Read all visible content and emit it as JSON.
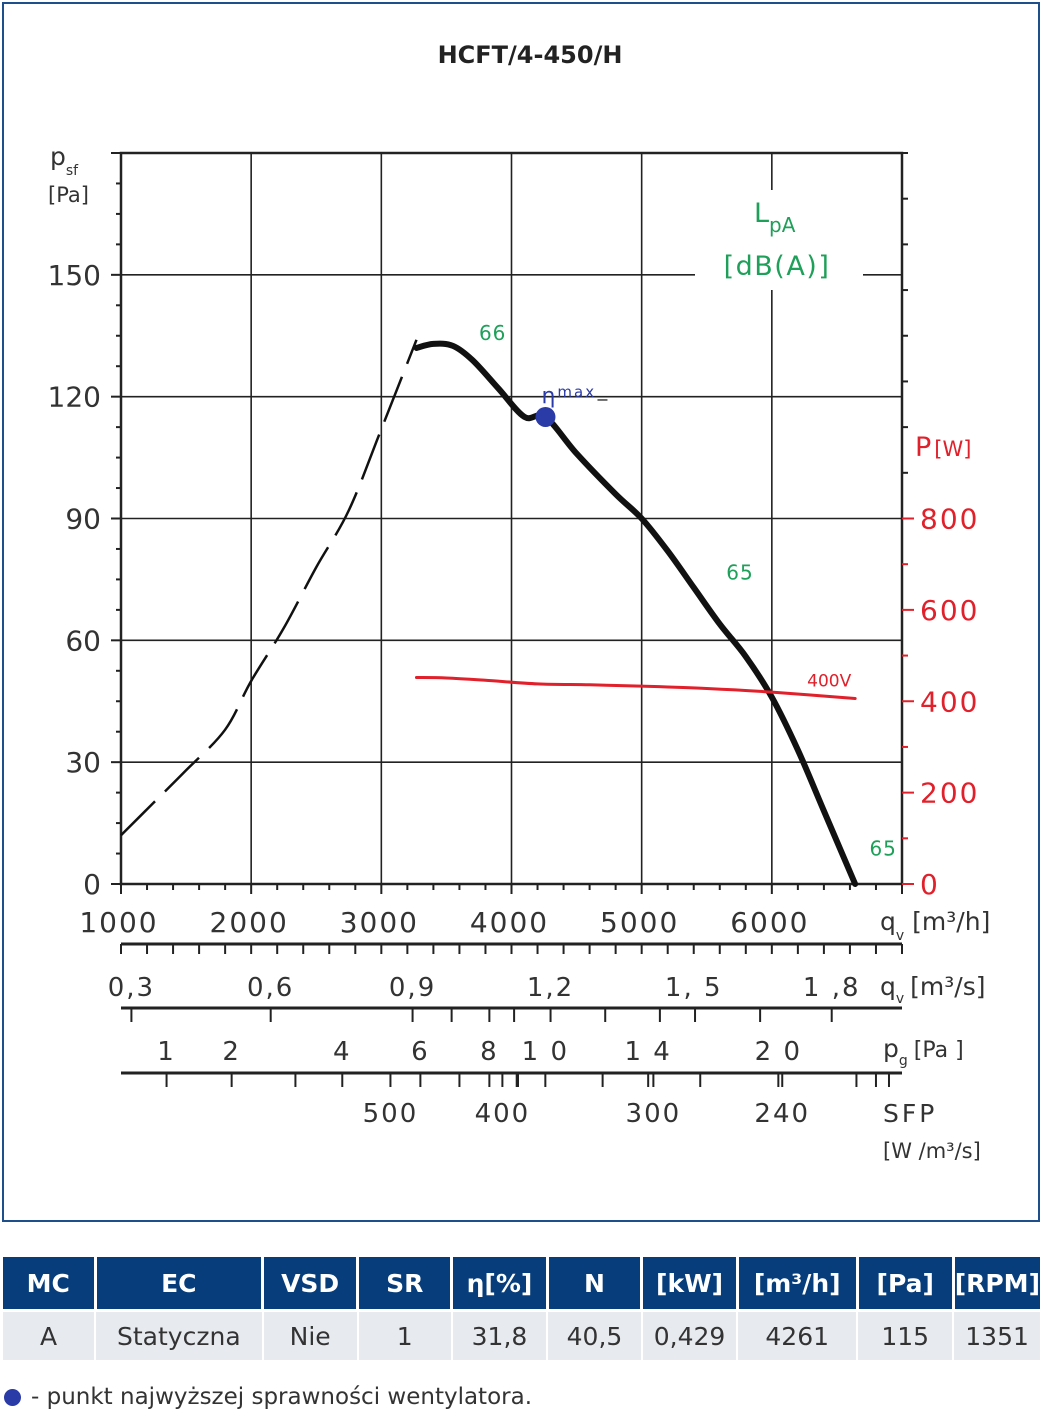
{
  "chart_data": {
    "type": "line",
    "title": "HCFT/4-450/H",
    "ylabel_main": "p",
    "ylabel_sub": "sf",
    "ylabel_unit": "[Pa]",
    "ylim": [
      0,
      180
    ],
    "y_ticks": [
      "0",
      "30",
      "60",
      "90",
      "120",
      "150"
    ],
    "y_tick_values": [
      0,
      30,
      60,
      90,
      120,
      150
    ],
    "xlim": [
      1000,
      7000
    ],
    "x_ticks": [
      "1000",
      "2000",
      "3000",
      "4000",
      "5000",
      "6000"
    ],
    "x_tick_values": [
      1000,
      2000,
      3000,
      4000,
      5000,
      6000
    ],
    "x_unit_main": "q",
    "x_unit_sub": "v",
    "x_unit_rest": "[m³/h]",
    "power_label_main": "P",
    "power_label_unit": "[W]",
    "power_ticks": [
      "0",
      "200",
      "400",
      "600",
      "800"
    ],
    "power_tick_values": [
      0,
      200,
      400,
      600,
      800
    ],
    "power_ylim": [
      0,
      1600
    ],
    "sound_label_main": "L",
    "sound_label_sub": "pA",
    "sound_label_unit": "[dB(A)]",
    "series": [
      {
        "role": "fan-curve-stable",
        "x": [
          3270,
          3400,
          3550,
          3700,
          3900,
          4100,
          4261,
          4500,
          4800,
          5000,
          5200,
          5400,
          5600,
          5800,
          6000,
          6200,
          6400,
          6640
        ],
        "y": [
          132,
          133,
          132.5,
          129,
          122,
          115,
          115,
          106,
          96,
          90,
          82,
          73,
          64,
          56,
          46,
          33,
          18,
          0
        ]
      },
      {
        "role": "fan-curve-unstable",
        "x": [
          1000,
          1250,
          1500,
          1800,
          2000,
          2250,
          2500,
          2750,
          3000,
          3270
        ],
        "y": [
          12,
          20,
          28,
          38,
          50,
          63,
          78,
          92,
          112,
          134
        ]
      },
      {
        "name": "400V",
        "role": "power",
        "x": [
          3270,
          3500,
          3800,
          4200,
          4600,
          5000,
          5500,
          6000,
          6640
        ],
        "y": [
          452,
          451,
          446,
          438,
          436,
          433,
          428,
          420,
          406
        ]
      }
    ],
    "sound_levels": [
      {
        "value": "66",
        "x": 3750,
        "y": 134
      },
      {
        "value": "65",
        "x": 5650,
        "y": 75
      },
      {
        "value": "65",
        "x": 6750,
        "y": 7
      }
    ],
    "eta_max": {
      "label_main": "η",
      "label_sub": "max",
      "x": 4261,
      "y": 115
    },
    "scales": [
      {
        "name": "qv-m3s",
        "unit_main": "q",
        "unit_sub": "v",
        "unit_rest": "[m³/s]",
        "labels": [
          "0,3",
          "0,6",
          "0,9",
          "1,2",
          "1, 5",
          "1 ,8"
        ],
        "label_positions": [
          1080,
          2150,
          3240,
          4300,
          5400,
          6460
        ],
        "ticks": [
          1080,
          2150,
          3240,
          3540,
          3830,
          4020,
          4300,
          4720,
          5140,
          5410,
          5910,
          6460
        ]
      },
      {
        "name": "pg",
        "unit_main": "p",
        "unit_sub": "g",
        "unit_rest": "[Pa ]",
        "labels": [
          "1",
          "2",
          "4",
          "6",
          "8",
          "1 0",
          "1 4",
          "2 0"
        ],
        "label_positions": [
          1350,
          1850,
          2700,
          3300,
          3830,
          4260,
          5050,
          6050
        ],
        "ticks": [
          1350,
          1850,
          2340,
          2700,
          3300,
          3600,
          3830,
          4040,
          4260,
          4700,
          5050,
          5450,
          6050,
          6650,
          6900
        ]
      },
      {
        "name": "sfp",
        "unit_main": "SFP",
        "unit_rest": "[W /m³/s]",
        "labels": [
          "500",
          "400",
          "300",
          "240"
        ],
        "label_positions": [
          3070,
          3930,
          5090,
          6080
        ],
        "ticks": [
          3070,
          3930,
          4050,
          5090,
          6080,
          6800
        ]
      }
    ]
  },
  "table": {
    "headers": [
      "MC",
      "EC",
      "VSD",
      "SR",
      "η[%]",
      "N",
      "[kW]",
      "[m³/h]",
      "[Pa]",
      "[RPM]"
    ],
    "row": [
      "A",
      "Statyczna",
      "Nie",
      "1",
      "31,8",
      "40,5",
      "0,429",
      "4261",
      "115",
      "1351"
    ]
  },
  "footnote": "- punkt najwyższej sprawności wentylatora.",
  "colors": {
    "fan": "#111111",
    "power": "#e0202a",
    "sound": "#1fa05a",
    "eta": "#2a3aa6",
    "header_bg": "#063d7a",
    "frame": "#1f4e8c"
  }
}
